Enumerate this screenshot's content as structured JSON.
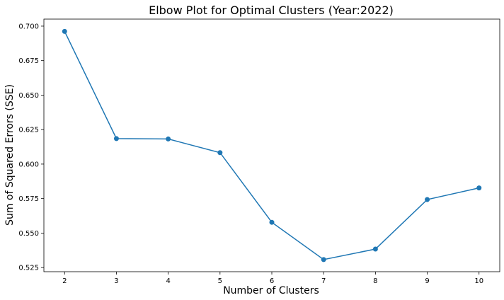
{
  "chart_data": {
    "type": "line",
    "title": "Elbow Plot for Optimal Clusters (Year:2022)",
    "xlabel": "Number of Clusters",
    "ylabel": "Sum of Squared Errors (SSE)",
    "x": [
      2,
      3,
      4,
      5,
      6,
      7,
      8,
      9,
      10
    ],
    "series": [
      {
        "values": [
          0.6962,
          0.6185,
          0.6182,
          0.6083,
          0.5578,
          0.5308,
          0.5384,
          0.5743,
          0.5827
        ]
      }
    ],
    "xlim": [
      1.6,
      10.4
    ],
    "ylim": [
      0.522,
      0.7051
    ],
    "xticks": [
      "2",
      "3",
      "4",
      "5",
      "6",
      "7",
      "8",
      "9",
      "10"
    ],
    "yticks": [
      "0.525",
      "0.550",
      "0.575",
      "0.600",
      "0.625",
      "0.650",
      "0.675",
      "0.700"
    ],
    "grid": false,
    "markers": true,
    "color": "#1f77b4"
  }
}
